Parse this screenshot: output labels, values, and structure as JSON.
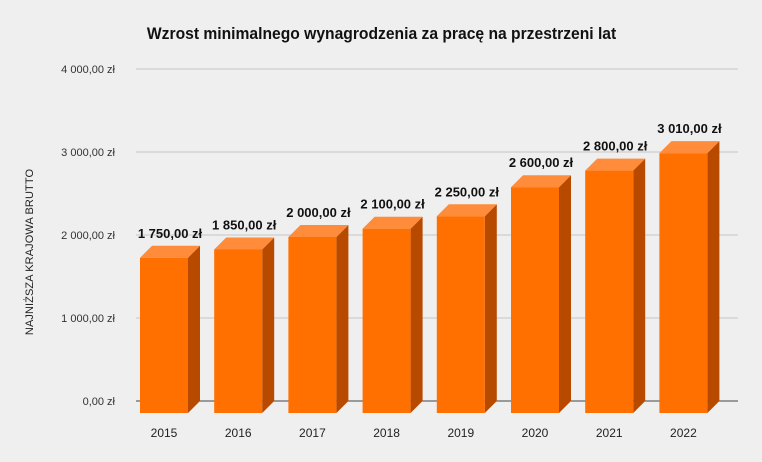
{
  "chart_data": {
    "type": "bar",
    "title": "Wzrost minimalnego wynagrodzenia za pracę na przestrzeni lat",
    "xlabel": "",
    "ylabel": "NAJNIŻSZA KRAJOWA BRUTTO",
    "categories": [
      "2015",
      "2016",
      "2017",
      "2018",
      "2019",
      "2020",
      "2021",
      "2022"
    ],
    "values": [
      1750,
      1850,
      2000,
      2100,
      2250,
      2600,
      2800,
      3010
    ],
    "value_labels": [
      "1 750,00 zł",
      "1 850,00 zł",
      "2 000,00 zł",
      "2 100,00 zł",
      "2 250,00 zł",
      "2 600,00 zł",
      "2 800,00 zł",
      "3 010,00 zł"
    ],
    "ylim": [
      0,
      4000
    ],
    "yticks": [
      0,
      1000,
      2000,
      3000,
      4000
    ],
    "ytick_labels": [
      "0,00 zł",
      "1 000,00 zł",
      "2 000,00 zł",
      "3 000,00 zł",
      "4 000,00 zł"
    ],
    "grid": true,
    "legend": "none",
    "bar_3d": true,
    "colors": {
      "bar_front": "#ff7000",
      "bar_top": "#ff8c3a",
      "bar_side": "#b84a00",
      "grid": "#c4c4c4",
      "background": "#efefef"
    }
  }
}
